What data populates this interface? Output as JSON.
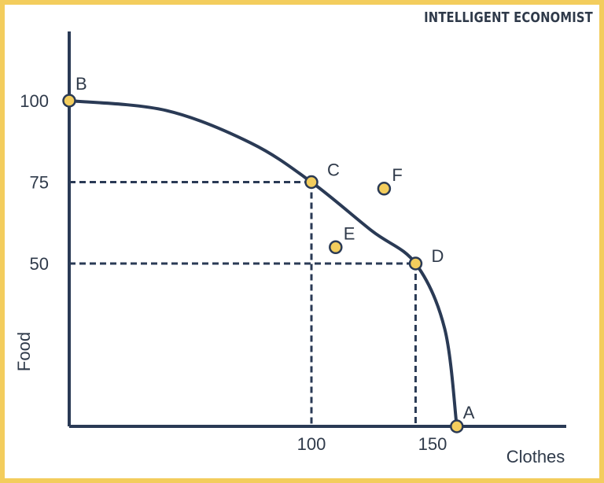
{
  "brand": "INTELLIGENT ECONOMIST",
  "colors": {
    "line": "#2a3a55",
    "point": "#f3cd5d",
    "frame": "#f3cd5d"
  },
  "chart_data": {
    "type": "line",
    "title": "",
    "xlabel": "Clothes",
    "ylabel": "Food",
    "xlim": [
      0,
      210
    ],
    "ylim": [
      0,
      100
    ],
    "x_ticks": [
      100,
      150
    ],
    "y_ticks": [
      50,
      75,
      100
    ],
    "series": [
      {
        "points": [
          {
            "x": 0,
            "y": 100
          },
          {
            "x": 40,
            "y": 97
          },
          {
            "x": 75,
            "y": 87
          },
          {
            "x": 100,
            "y": 75
          },
          {
            "x": 125,
            "y": 60
          },
          {
            "x": 143,
            "y": 50
          },
          {
            "x": 155,
            "y": 30
          },
          {
            "x": 160,
            "y": 0
          }
        ]
      }
    ],
    "points": [
      {
        "label": "A",
        "x": 160,
        "y": 0
      },
      {
        "label": "B",
        "x": 0,
        "y": 100
      },
      {
        "label": "C",
        "x": 100,
        "y": 75
      },
      {
        "label": "D",
        "x": 143,
        "y": 50
      },
      {
        "label": "E",
        "x": 110,
        "y": 55
      },
      {
        "label": "F",
        "x": 130,
        "y": 73
      }
    ],
    "guides": [
      {
        "x": 100,
        "y": 75
      },
      {
        "x": 143,
        "y": 50
      }
    ]
  }
}
